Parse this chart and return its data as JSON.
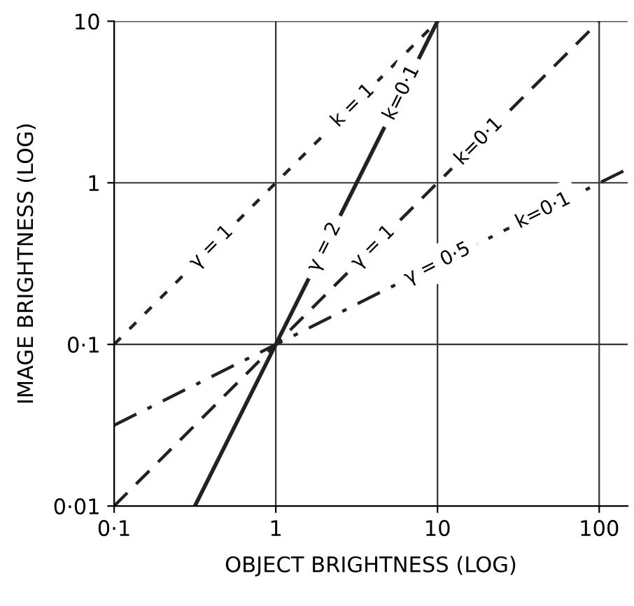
{
  "chart_data": {
    "type": "line",
    "xlabel": "OBJECT BRIGHTNESS (LOG)",
    "ylabel": "IMAGE BRIGHTNESS (LOG)",
    "log": "xy",
    "grid": true,
    "xlim": [
      0.1,
      150
    ],
    "ylim": [
      0.01,
      10
    ],
    "xticks": [
      {
        "value": 0.1,
        "label": "0·1"
      },
      1,
      10,
      100
    ],
    "yticks": [
      {
        "value": 0.01,
        "label": "0·01"
      },
      {
        "value": 0.1,
        "label": "0·1"
      },
      1,
      10
    ],
    "series": [
      {
        "color": "#222222",
        "line_style": "dotted",
        "x": [
          0.1,
          10
        ],
        "values": [
          0.1,
          10
        ]
      },
      {
        "color": "#222222",
        "line_style": "solid",
        "x": [
          0.316,
          10
        ],
        "values": [
          0.01,
          10
        ]
      },
      {
        "color": "#222222",
        "line_style": "dashed",
        "x": [
          0.1,
          100
        ],
        "values": [
          0.01,
          10
        ]
      },
      {
        "color": "#222222",
        "line_style": "dashdot",
        "x": [
          0.1,
          150
        ],
        "values": [
          0.0316,
          1.22
        ]
      }
    ],
    "annotations": [
      {
        "text": "γ = 1",
        "x": 0.4,
        "y": 0.4
      },
      {
        "text": "k = 1",
        "x": 3,
        "y": 3
      },
      {
        "text": "k=0·1",
        "x": 6,
        "y": 3.6
      },
      {
        "text": "γ = 2",
        "x": 2,
        "y": 0.4
      },
      {
        "text": "γ = 1",
        "x": 4,
        "y": 0.4
      },
      {
        "text": "k=0·1",
        "x": 18,
        "y": 1.8
      },
      {
        "text": "γ = 0·5",
        "x": 10,
        "y": 0.316
      },
      {
        "text": "k=0·1",
        "x": 45,
        "y": 0.671
      }
    ]
  }
}
